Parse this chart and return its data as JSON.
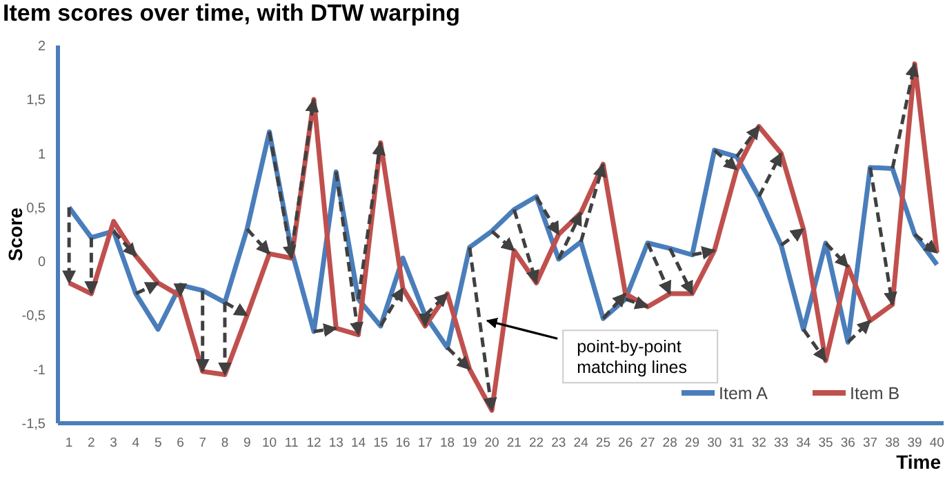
{
  "chart_data": {
    "type": "line",
    "title": "Item scores over time, with DTW warping",
    "xlabel": "Time",
    "ylabel": "Score",
    "x": [
      1,
      2,
      3,
      4,
      5,
      6,
      7,
      8,
      9,
      10,
      11,
      12,
      13,
      14,
      15,
      16,
      17,
      18,
      19,
      20,
      21,
      22,
      23,
      24,
      25,
      26,
      27,
      28,
      29,
      30,
      31,
      32,
      33,
      34,
      35,
      36,
      37,
      38,
      39,
      40
    ],
    "xlim": [
      0.5,
      40.3
    ],
    "xticks": [
      1,
      2,
      3,
      4,
      5,
      6,
      7,
      8,
      9,
      10,
      11,
      12,
      13,
      14,
      15,
      16,
      17,
      18,
      19,
      20,
      21,
      22,
      23,
      24,
      25,
      26,
      27,
      28,
      29,
      30,
      31,
      32,
      33,
      34,
      35,
      36,
      37,
      38,
      39,
      40
    ],
    "ylim": [
      -1.5,
      2
    ],
    "yticks": [
      {
        "value": -1.5,
        "label": "-1,5"
      },
      -1,
      {
        "value": -0.5,
        "label": "-0,5"
      },
      0,
      {
        "value": 0.5,
        "label": "0,5"
      },
      1,
      {
        "value": 1.5,
        "label": "1,5"
      },
      2
    ],
    "grid": false,
    "legend": "bottom right",
    "annotations": [
      {
        "text": "point-by-point matching lines",
        "x": 19.6,
        "y": -0.55
      }
    ],
    "series": [
      {
        "name": "Item A",
        "color": "#4a7ebb",
        "values": [
          0.5,
          0.22,
          0.28,
          -0.3,
          -0.63,
          -0.22,
          -0.27,
          -0.38,
          0.3,
          1.2,
          0.1,
          -0.65,
          0.83,
          -0.35,
          -0.6,
          0.03,
          -0.5,
          -0.8,
          0.13,
          0.28,
          0.48,
          0.6,
          0.02,
          0.18,
          -0.53,
          -0.35,
          0.17,
          0.12,
          0.06,
          1.03,
          0.97,
          0.6,
          0.15,
          -0.63,
          0.17,
          -0.75,
          0.87,
          0.86,
          0.25,
          -0.03
        ]
      },
      {
        "name": "Item B",
        "color": "#c0504d",
        "values": [
          -0.2,
          -0.3,
          0.37,
          0.05,
          -0.2,
          -0.32,
          -1.02,
          -1.05,
          -0.5,
          0.07,
          0.03,
          1.5,
          -0.62,
          -0.68,
          1.1,
          -0.25,
          -0.6,
          -0.3,
          -1.0,
          -1.38,
          0.1,
          -0.2,
          0.25,
          0.45,
          0.9,
          -0.3,
          -0.42,
          -0.3,
          -0.3,
          0.1,
          0.85,
          1.25,
          1.0,
          0.3,
          -0.92,
          -0.05,
          -0.55,
          -0.4,
          1.83,
          0.08
        ]
      },
      {
        "color": "#404040",
        "line_style": "dashed",
        "x": [
          1,
          1
        ],
        "values": [
          0.5,
          -0.2
        ]
      },
      {
        "color": "#404040",
        "line_style": "dashed",
        "x": [
          2,
          2
        ],
        "values": [
          0.22,
          -0.3
        ]
      },
      {
        "color": "#404040",
        "line_style": "dashed",
        "x": [
          3,
          4
        ],
        "values": [
          0.28,
          0.05
        ]
      },
      {
        "color": "#404040",
        "line_style": "dashed",
        "x": [
          4,
          5
        ],
        "values": [
          -0.3,
          -0.2
        ]
      },
      {
        "color": "#404040",
        "line_style": "dashed",
        "x": [
          6,
          6
        ],
        "values": [
          -0.22,
          -0.32
        ]
      },
      {
        "color": "#404040",
        "line_style": "dashed",
        "x": [
          7,
          7
        ],
        "values": [
          -0.27,
          -1.02
        ]
      },
      {
        "color": "#404040",
        "line_style": "dashed",
        "x": [
          8,
          8
        ],
        "values": [
          -0.38,
          -1.05
        ]
      },
      {
        "color": "#404040",
        "line_style": "dashed",
        "x": [
          8,
          9
        ],
        "values": [
          -0.38,
          -0.5
        ]
      },
      {
        "color": "#404040",
        "line_style": "dashed",
        "x": [
          9,
          10
        ],
        "values": [
          0.3,
          0.07
        ]
      },
      {
        "color": "#404040",
        "line_style": "dashed",
        "x": [
          10,
          11
        ],
        "values": [
          1.2,
          0.03
        ]
      },
      {
        "color": "#404040",
        "line_style": "dashed",
        "x": [
          11,
          12
        ],
        "values": [
          0.1,
          1.5
        ]
      },
      {
        "color": "#404040",
        "line_style": "dashed",
        "x": [
          12,
          13
        ],
        "values": [
          -0.65,
          -0.62
        ]
      },
      {
        "color": "#404040",
        "line_style": "dashed",
        "x": [
          13,
          14
        ],
        "values": [
          0.83,
          -0.68
        ]
      },
      {
        "color": "#404040",
        "line_style": "dashed",
        "x": [
          14,
          15
        ],
        "values": [
          -0.35,
          1.1
        ]
      },
      {
        "color": "#404040",
        "line_style": "dashed",
        "x": [
          15,
          16
        ],
        "values": [
          -0.6,
          -0.25
        ]
      },
      {
        "color": "#404040",
        "line_style": "dashed",
        "x": [
          17,
          17
        ],
        "values": [
          -0.5,
          -0.6
        ]
      },
      {
        "color": "#404040",
        "line_style": "dashed",
        "x": [
          17,
          18
        ],
        "values": [
          -0.5,
          -0.3
        ]
      },
      {
        "color": "#404040",
        "line_style": "dashed",
        "x": [
          18,
          19
        ],
        "values": [
          -0.8,
          -1.0
        ]
      },
      {
        "color": "#404040",
        "line_style": "dashed",
        "x": [
          19,
          20
        ],
        "values": [
          0.13,
          -1.38
        ]
      },
      {
        "color": "#404040",
        "line_style": "dashed",
        "x": [
          20,
          21
        ],
        "values": [
          0.28,
          0.1
        ]
      },
      {
        "color": "#404040",
        "line_style": "dashed",
        "x": [
          21,
          22
        ],
        "values": [
          0.48,
          -0.2
        ]
      },
      {
        "color": "#404040",
        "line_style": "dashed",
        "x": [
          22,
          23
        ],
        "values": [
          0.6,
          0.25
        ]
      },
      {
        "color": "#404040",
        "line_style": "dashed",
        "x": [
          23,
          24
        ],
        "values": [
          0.02,
          0.45
        ]
      },
      {
        "color": "#404040",
        "line_style": "dashed",
        "x": [
          24,
          25
        ],
        "values": [
          0.18,
          0.9
        ]
      },
      {
        "color": "#404040",
        "line_style": "dashed",
        "x": [
          25,
          26
        ],
        "values": [
          -0.53,
          -0.3
        ]
      },
      {
        "color": "#404040",
        "line_style": "dashed",
        "x": [
          26,
          27
        ],
        "values": [
          -0.35,
          -0.42
        ]
      },
      {
        "color": "#404040",
        "line_style": "dashed",
        "x": [
          27,
          28
        ],
        "values": [
          0.17,
          -0.3
        ]
      },
      {
        "color": "#404040",
        "line_style": "dashed",
        "x": [
          28,
          29
        ],
        "values": [
          0.12,
          -0.3
        ]
      },
      {
        "color": "#404040",
        "line_style": "dashed",
        "x": [
          29,
          30
        ],
        "values": [
          0.06,
          0.1
        ]
      },
      {
        "color": "#404040",
        "line_style": "dashed",
        "x": [
          30,
          31
        ],
        "values": [
          1.03,
          0.85
        ]
      },
      {
        "color": "#404040",
        "line_style": "dashed",
        "x": [
          31,
          32
        ],
        "values": [
          0.97,
          1.25
        ]
      },
      {
        "color": "#404040",
        "line_style": "dashed",
        "x": [
          32,
          33
        ],
        "values": [
          0.6,
          1.0
        ]
      },
      {
        "color": "#404040",
        "line_style": "dashed",
        "x": [
          33,
          34
        ],
        "values": [
          0.15,
          0.3
        ]
      },
      {
        "color": "#404040",
        "line_style": "dashed",
        "x": [
          34,
          35
        ],
        "values": [
          -0.63,
          -0.92
        ]
      },
      {
        "color": "#404040",
        "line_style": "dashed",
        "x": [
          35,
          36
        ],
        "values": [
          0.17,
          -0.05
        ]
      },
      {
        "color": "#404040",
        "line_style": "dashed",
        "x": [
          36,
          37
        ],
        "values": [
          -0.75,
          -0.55
        ]
      },
      {
        "color": "#404040",
        "line_style": "dashed",
        "x": [
          37,
          38
        ],
        "values": [
          0.87,
          -0.4
        ]
      },
      {
        "color": "#404040",
        "line_style": "dashed",
        "x": [
          38,
          39
        ],
        "values": [
          0.86,
          1.83
        ]
      },
      {
        "color": "#404040",
        "line_style": "dashed",
        "x": [
          39,
          40
        ],
        "values": [
          0.25,
          0.08
        ]
      }
    ]
  }
}
